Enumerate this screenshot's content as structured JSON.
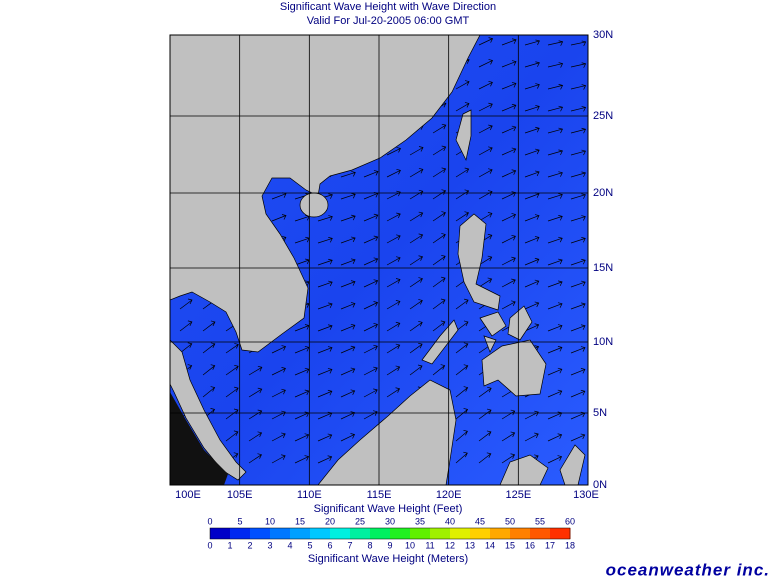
{
  "header": {
    "title": "Significant Wave Height with Wave Direction",
    "subtitle": "Valid For Jul-20-2005 06:00 GMT"
  },
  "map": {
    "lon_labels": [
      "100E",
      "105E",
      "110E",
      "115E",
      "120E",
      "125E",
      "130E"
    ],
    "lat_labels": [
      "30N",
      "25N",
      "20N",
      "15N",
      "10N",
      "5N",
      "0N"
    ]
  },
  "legend": {
    "feet_title": "Significant Wave Height (Feet)",
    "feet_ticks": [
      "0",
      "5",
      "10",
      "15",
      "20",
      "25",
      "30",
      "35",
      "40",
      "45",
      "50",
      "55",
      "60"
    ],
    "meter_ticks": [
      "0",
      "1",
      "2",
      "3",
      "4",
      "5",
      "6",
      "7",
      "8",
      "9",
      "10",
      "11",
      "12",
      "13",
      "14",
      "15",
      "16",
      "17",
      "18"
    ],
    "meter_title": "Significant Wave Height (Meters)"
  },
  "logo": "oceanweather inc."
}
